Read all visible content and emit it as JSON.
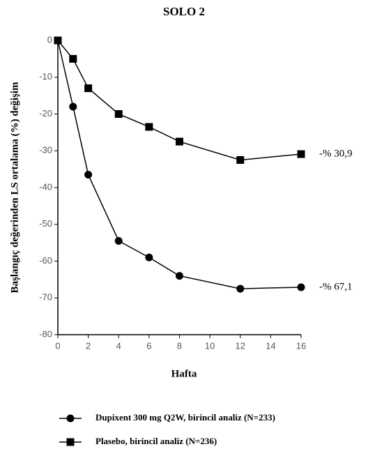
{
  "chart_data": {
    "type": "line",
    "title": "SOLO 2",
    "x_label": "Hafta",
    "y_label": "Başlangıç değerinden LS ortalama (%) değişim",
    "xlim": [
      0,
      16
    ],
    "xticks": [
      0,
      2,
      4,
      6,
      8,
      10,
      12,
      14,
      16
    ],
    "ylim": [
      -80,
      0
    ],
    "yticks": [
      0,
      -10,
      -20,
      -30,
      -40,
      -50,
      -60,
      -70,
      -80
    ],
    "x": [
      0,
      1,
      2,
      4,
      6,
      8,
      12,
      16
    ],
    "series": [
      {
        "name": "Dupixent 300 mg Q2W, birincil analiz (N=233)",
        "color": "#000000",
        "marker": "circle",
        "values": [
          0,
          -18,
          -36.5,
          -54.5,
          -59,
          -64,
          -67.5,
          -67.1
        ],
        "value_labels": [
          null,
          null,
          null,
          null,
          null,
          null,
          null,
          "-% 67,1"
        ]
      },
      {
        "name": "Plasebo, birincil analiz (N=236)",
        "color": "#000000",
        "marker": "square",
        "values": [
          0,
          -5,
          -13,
          -20,
          -23.5,
          -27.5,
          -32.5,
          -30.9
        ],
        "value_labels": [
          null,
          null,
          null,
          null,
          null,
          null,
          null,
          "-% 30,9"
        ]
      }
    ]
  }
}
